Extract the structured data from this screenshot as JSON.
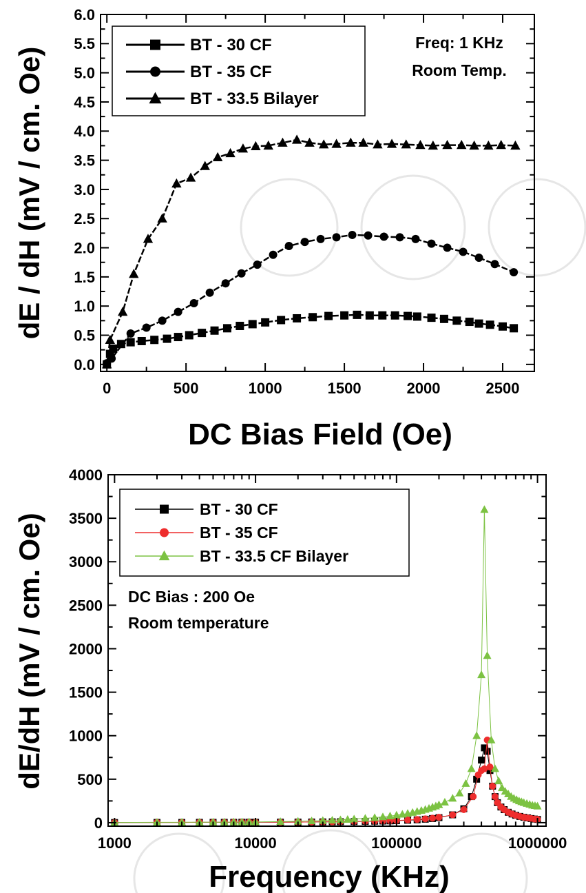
{
  "chart_data": [
    {
      "type": "line",
      "xlabel": "DC Bias Field (Oe)",
      "ylabel": "dE / dH (mV / cm. Oe)",
      "xlim": [
        -40,
        2700
      ],
      "ylim": [
        -0.12,
        6.0
      ],
      "x_ticks": [
        0,
        500,
        1000,
        1500,
        2000,
        2500
      ],
      "y_ticks": [
        0.0,
        0.5,
        1.0,
        1.5,
        2.0,
        2.5,
        3.0,
        3.5,
        4.0,
        4.5,
        5.0,
        5.5,
        6.0
      ],
      "x_tick_labels": [
        "0",
        "500",
        "1000",
        "1500",
        "2000",
        "2500"
      ],
      "y_tick_labels": [
        "0.0",
        "0.5",
        "1.0",
        "1.5",
        "2.0",
        "2.5",
        "3.0",
        "3.5",
        "4.0",
        "4.5",
        "5.0",
        "5.5",
        "6.0"
      ],
      "legend_position": "top-left",
      "annotations": [
        "Freq: 1 KHz",
        "Room Temp."
      ],
      "series": [
        {
          "name": "BT - 30 CF",
          "marker": "square",
          "color": "#000000",
          "x": [
            0,
            20,
            40,
            90,
            150,
            220,
            300,
            380,
            450,
            520,
            600,
            680,
            760,
            840,
            920,
            1000,
            1100,
            1200,
            1300,
            1400,
            1500,
            1580,
            1660,
            1740,
            1820,
            1900,
            1960,
            2050,
            2130,
            2210,
            2290,
            2350,
            2420,
            2500,
            2570
          ],
          "y": [
            0.0,
            0.18,
            0.27,
            0.35,
            0.38,
            0.4,
            0.42,
            0.44,
            0.47,
            0.5,
            0.54,
            0.58,
            0.62,
            0.66,
            0.69,
            0.72,
            0.76,
            0.79,
            0.81,
            0.83,
            0.84,
            0.85,
            0.84,
            0.84,
            0.84,
            0.83,
            0.82,
            0.8,
            0.78,
            0.75,
            0.73,
            0.7,
            0.68,
            0.65,
            0.62
          ]
        },
        {
          "name": "BT - 35 CF",
          "marker": "circle",
          "color": "#000000",
          "x": [
            0,
            30,
            150,
            250,
            350,
            450,
            550,
            650,
            750,
            850,
            950,
            1050,
            1150,
            1250,
            1350,
            1450,
            1550,
            1650,
            1750,
            1850,
            1950,
            2050,
            2150,
            2250,
            2350,
            2450,
            2570
          ],
          "y": [
            0.02,
            0.1,
            0.53,
            0.63,
            0.75,
            0.9,
            1.05,
            1.23,
            1.39,
            1.56,
            1.71,
            1.88,
            2.03,
            2.1,
            2.15,
            2.18,
            2.22,
            2.21,
            2.19,
            2.18,
            2.15,
            2.07,
            2.0,
            1.93,
            1.83,
            1.72,
            1.58
          ]
        },
        {
          "name": "BT - 33.5 Bilayer",
          "marker": "triangle",
          "color": "#000000",
          "x": [
            0,
            20,
            100,
            170,
            260,
            350,
            440,
            530,
            620,
            700,
            780,
            860,
            940,
            1020,
            1110,
            1200,
            1280,
            1370,
            1450,
            1540,
            1620,
            1710,
            1800,
            1890,
            1980,
            2060,
            2150,
            2240,
            2320,
            2410,
            2490,
            2580
          ],
          "y": [
            0.0,
            0.42,
            0.9,
            1.55,
            2.15,
            2.5,
            3.1,
            3.2,
            3.4,
            3.55,
            3.62,
            3.7,
            3.74,
            3.75,
            3.8,
            3.85,
            3.8,
            3.77,
            3.78,
            3.8,
            3.8,
            3.77,
            3.78,
            3.77,
            3.76,
            3.75,
            3.76,
            3.76,
            3.75,
            3.75,
            3.76,
            3.75
          ]
        }
      ]
    },
    {
      "type": "line",
      "xlabel": "Frequency (KHz)",
      "ylabel": "dE/dH (mV / cm. Oe)",
      "xscale": "log",
      "xlim": [
        900,
        1150000
      ],
      "ylim": [
        -40,
        4000
      ],
      "x_ticks": [
        1000,
        10000,
        100000,
        1000000
      ],
      "y_ticks": [
        0,
        500,
        1000,
        1500,
        2000,
        2500,
        3000,
        3500,
        4000
      ],
      "x_tick_labels": [
        "1000",
        "10000",
        "100000",
        "1000000"
      ],
      "y_tick_labels": [
        "0",
        "500",
        "1000",
        "1500",
        "2000",
        "2500",
        "3000",
        "3500",
        "4000"
      ],
      "legend_position": "top-left",
      "annotations": [
        "DC Bias : 200 Oe",
        "Room temperature"
      ],
      "series": [
        {
          "name": "BT - 30 CF",
          "marker": "square",
          "color": "#000000",
          "x": [
            1000,
            2000,
            3000,
            4000,
            5000,
            6000,
            7000,
            8000,
            9000,
            10000,
            15000,
            20000,
            25000,
            30000,
            35000,
            40000,
            50000,
            60000,
            70000,
            80000,
            90000,
            100000,
            120000,
            140000,
            160000,
            180000,
            200000,
            250000,
            300000,
            340000,
            370000,
            400000,
            420000,
            440000,
            460000,
            480000,
            500000,
            520000,
            550000,
            580000,
            620000,
            660000,
            700000,
            750000,
            800000,
            850000,
            900000,
            950000,
            1000000
          ],
          "y": [
            2,
            3,
            3,
            4,
            4,
            4,
            4,
            5,
            5,
            5,
            6,
            7,
            8,
            9,
            10,
            11,
            13,
            15,
            17,
            19,
            21,
            23,
            28,
            33,
            40,
            48,
            58,
            90,
            160,
            300,
            500,
            720,
            860,
            820,
            600,
            420,
            300,
            230,
            180,
            150,
            120,
            100,
            85,
            72,
            62,
            55,
            48,
            42,
            38
          ]
        },
        {
          "name": "BT - 35 CF",
          "marker": "circle",
          "color": "#ee2d2d",
          "x": [
            1000,
            2000,
            3000,
            4000,
            5000,
            6000,
            7000,
            8000,
            9000,
            10000,
            15000,
            20000,
            25000,
            30000,
            35000,
            40000,
            50000,
            60000,
            70000,
            80000,
            90000,
            100000,
            120000,
            140000,
            160000,
            180000,
            200000,
            250000,
            300000,
            350000,
            380000,
            400000,
            420000,
            440000,
            460000,
            480000,
            500000,
            520000,
            550000,
            580000,
            620000,
            660000,
            700000,
            750000,
            800000,
            850000,
            900000,
            950000,
            1000000
          ],
          "y": [
            2,
            3,
            3,
            4,
            4,
            4,
            5,
            5,
            5,
            5,
            6,
            7,
            8,
            9,
            10,
            12,
            14,
            16,
            18,
            20,
            23,
            26,
            31,
            37,
            44,
            52,
            62,
            90,
            150,
            300,
            550,
            600,
            620,
            950,
            640,
            420,
            300,
            230,
            180,
            150,
            120,
            100,
            85,
            72,
            62,
            55,
            48,
            42,
            38
          ]
        },
        {
          "name": "BT - 33.5 CF Bilayer",
          "marker": "triangle",
          "color": "#7cc242",
          "x": [
            1000,
            2000,
            3000,
            4000,
            5000,
            6000,
            7000,
            8000,
            9000,
            10000,
            15000,
            20000,
            25000,
            30000,
            35000,
            40000,
            45000,
            50000,
            60000,
            70000,
            80000,
            90000,
            100000,
            110000,
            120000,
            130000,
            140000,
            150000,
            160000,
            170000,
            180000,
            190000,
            200000,
            220000,
            250000,
            280000,
            310000,
            340000,
            370000,
            400000,
            420000,
            440000,
            470000,
            500000,
            530000,
            560000,
            590000,
            620000,
            650000,
            680000,
            710000,
            740000,
            770000,
            800000,
            840000,
            880000,
            920000,
            960000,
            1000000
          ],
          "y": [
            3,
            4,
            5,
            5,
            6,
            6,
            7,
            7,
            8,
            8,
            12,
            16,
            20,
            24,
            28,
            33,
            37,
            42,
            50,
            58,
            67,
            76,
            86,
            96,
            106,
            117,
            128,
            140,
            152,
            165,
            178,
            191,
            205,
            235,
            280,
            340,
            450,
            620,
            1000,
            1700,
            3600,
            1920,
            950,
            620,
            480,
            400,
            360,
            330,
            300,
            280,
            265,
            250,
            240,
            230,
            220,
            210,
            200,
            195,
            190
          ]
        }
      ]
    }
  ]
}
